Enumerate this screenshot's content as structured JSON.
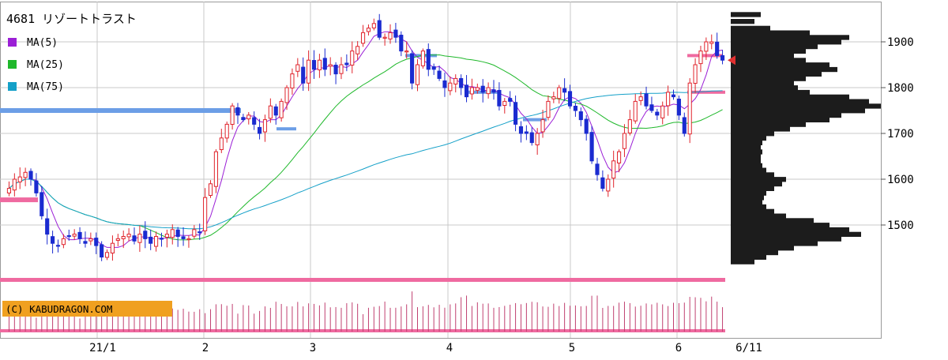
{
  "chart_data": {
    "type": "candlestick",
    "title": "4681 リゾートトラスト",
    "legend": [
      {
        "label": "MA(5)",
        "color": "#9b1fd6"
      },
      {
        "label": "MA(25)",
        "color": "#1fb82b"
      },
      {
        "label": "MA(75)",
        "color": "#14a0c8"
      }
    ],
    "copyright": "(C) KABUDRAGON.COM",
    "y_axis": {
      "ticks": [
        1500,
        1600,
        1700,
        1800,
        1900
      ],
      "range": [
        1390,
        1990
      ]
    },
    "x_axis": {
      "labels": [
        "21/1",
        "2",
        "3",
        "4",
        "5",
        "6",
        "6/11"
      ]
    },
    "last_price": 1860,
    "colors": {
      "up": "#e0242c",
      "down": "#1a2bd0",
      "volume": "#c04070",
      "profile": "#1c1c1c",
      "band": "#6c9ee6",
      "pink": "#ef6aa0"
    },
    "reference_lines": [
      1750,
      1555,
      1870,
      1790,
      1730,
      1710,
      1695,
      1920
    ],
    "closes": [
      1580,
      1600,
      1605,
      1615,
      1600,
      1570,
      1520,
      1480,
      1460,
      1455,
      1470,
      1475,
      1480,
      1470,
      1460,
      1470,
      1455,
      1430,
      1440,
      1460,
      1470,
      1475,
      1480,
      1465,
      1480,
      1470,
      1460,
      1475,
      1470,
      1480,
      1490,
      1475,
      1470,
      1470,
      1490,
      1485,
      1560,
      1590,
      1660,
      1690,
      1720,
      1760,
      1740,
      1730,
      1740,
      1720,
      1700,
      1730,
      1760,
      1740,
      1770,
      1800,
      1830,
      1850,
      1810,
      1860,
      1840,
      1860,
      1840,
      1850,
      1830,
      1850,
      1850,
      1880,
      1890,
      1920,
      1930,
      1940,
      1910,
      1910,
      1920,
      1910,
      1880,
      1880,
      1810,
      1850,
      1880,
      1840,
      1840,
      1820,
      1800,
      1810,
      1820,
      1800,
      1780,
      1800,
      1800,
      1790,
      1800,
      1790,
      1760,
      1770,
      1770,
      1720,
      1700,
      1700,
      1680,
      1700,
      1730,
      1770,
      1780,
      1800,
      1790,
      1760,
      1750,
      1730,
      1700,
      1640,
      1610,
      1580,
      1600,
      1640,
      1660,
      1700,
      1730,
      1770,
      1780,
      1760,
      1750,
      1740,
      1760,
      1790,
      1780,
      1740,
      1700,
      1810,
      1850,
      1880,
      1900,
      1900,
      1870,
      1860
    ],
    "volumes": [
      2,
      2,
      2,
      2,
      2,
      1,
      2,
      2,
      2,
      2,
      2,
      2,
      2,
      1,
      2,
      2,
      2,
      2,
      2,
      2,
      2,
      2,
      2,
      2,
      2,
      2,
      2,
      2,
      2,
      2,
      2,
      2,
      2,
      2,
      2,
      2,
      2,
      2,
      3,
      3,
      3,
      3,
      2,
      3,
      3,
      2,
      2,
      3,
      3,
      3,
      3,
      3,
      3,
      3,
      3,
      3,
      3,
      3,
      3,
      3,
      3,
      3,
      3,
      3,
      3,
      2,
      3,
      3,
      3,
      3,
      3,
      3,
      3,
      3,
      5,
      3,
      3,
      3,
      3,
      3,
      3,
      3,
      3,
      4,
      4,
      3,
      3,
      3,
      3,
      3,
      3,
      3,
      3,
      3,
      3,
      3,
      3,
      3,
      3,
      3,
      3,
      3,
      3,
      3,
      3,
      3,
      3,
      4,
      4,
      3,
      3,
      3,
      3,
      3,
      3,
      3,
      3,
      3,
      3,
      3,
      3,
      3,
      3,
      3,
      3,
      4,
      4,
      4,
      4,
      4,
      3,
      3
    ],
    "volume_profile": [
      [
        1960,
        38
      ],
      [
        1945,
        30
      ],
      [
        1930,
        50
      ],
      [
        1920,
        100
      ],
      [
        1910,
        150
      ],
      [
        1900,
        140
      ],
      [
        1890,
        110
      ],
      [
        1880,
        95
      ],
      [
        1870,
        80
      ],
      [
        1860,
        95
      ],
      [
        1850,
        125
      ],
      [
        1840,
        135
      ],
      [
        1830,
        115
      ],
      [
        1820,
        95
      ],
      [
        1810,
        80
      ],
      [
        1800,
        85
      ],
      [
        1790,
        100
      ],
      [
        1780,
        150
      ],
      [
        1770,
        175
      ],
      [
        1760,
        190
      ],
      [
        1750,
        170
      ],
      [
        1740,
        140
      ],
      [
        1730,
        125
      ],
      [
        1720,
        95
      ],
      [
        1710,
        75
      ],
      [
        1700,
        55
      ],
      [
        1690,
        45
      ],
      [
        1680,
        40
      ],
      [
        1670,
        38
      ],
      [
        1660,
        40
      ],
      [
        1650,
        38
      ],
      [
        1640,
        38
      ],
      [
        1630,
        40
      ],
      [
        1620,
        45
      ],
      [
        1610,
        55
      ],
      [
        1600,
        70
      ],
      [
        1590,
        65
      ],
      [
        1580,
        55
      ],
      [
        1570,
        45
      ],
      [
        1560,
        42
      ],
      [
        1550,
        40
      ],
      [
        1540,
        45
      ],
      [
        1530,
        55
      ],
      [
        1520,
        70
      ],
      [
        1510,
        105
      ],
      [
        1500,
        125
      ],
      [
        1490,
        150
      ],
      [
        1480,
        165
      ],
      [
        1470,
        140
      ],
      [
        1460,
        110
      ],
      [
        1450,
        80
      ],
      [
        1440,
        60
      ],
      [
        1430,
        45
      ],
      [
        1420,
        30
      ]
    ]
  }
}
